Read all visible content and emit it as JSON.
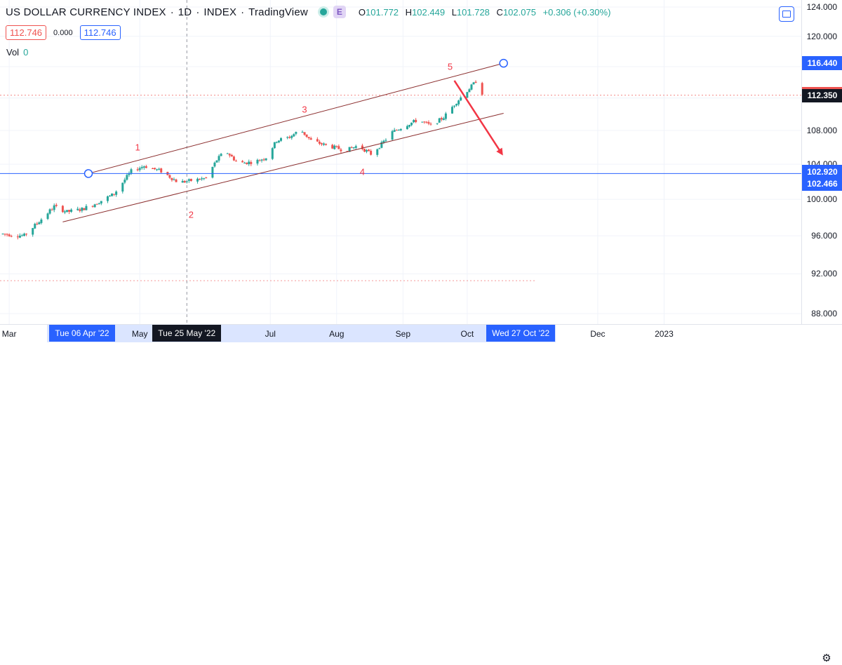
{
  "header": {
    "symbol": "US DOLLAR CURRENCY INDEX",
    "interval": "1D",
    "exchange": "INDEX",
    "source": "TradingView",
    "badge": "E",
    "ohlc": {
      "open_label": "O",
      "open": "101.772",
      "high_label": "H",
      "high": "102.449",
      "low_label": "L",
      "low": "101.728",
      "close_label": "C",
      "close": "102.075",
      "change": "+0.306 (+0.30%)"
    }
  },
  "quote": {
    "sell": "112.746",
    "spread": "0.000",
    "buy": "112.746"
  },
  "volume": {
    "label": "Vol",
    "value": "0"
  },
  "y_axis": {
    "ticks": [
      "124.000",
      "120.000",
      "116.000",
      "112.000",
      "108.000",
      "104.000",
      "100.000",
      "96.000",
      "92.000",
      "88.000"
    ],
    "tick_values": [
      124,
      120,
      116,
      112,
      108,
      104,
      100,
      96,
      92,
      88
    ],
    "price_labels": [
      {
        "text": "116.440",
        "value": 116.44,
        "color": "#2962ff"
      },
      {
        "text": "112.350",
        "value": 112.35,
        "color": "#131722"
      },
      {
        "text": "102.920",
        "value": 102.92,
        "color": "#2962ff"
      },
      {
        "text": "102.466",
        "value": 102.466,
        "color": "#2962ff"
      }
    ]
  },
  "x_axis": {
    "ticks": [
      {
        "text": "Mar",
        "day": 3
      },
      {
        "text": "May",
        "day": 64
      },
      {
        "text": "Jul",
        "day": 125
      },
      {
        "text": "Aug",
        "day": 156
      },
      {
        "text": "Sep",
        "day": 187
      },
      {
        "text": "Oct",
        "day": 217
      },
      {
        "text": "Dec",
        "day": 278
      },
      {
        "text": "2023",
        "day": 309
      }
    ],
    "labels": [
      {
        "text": "Tue 06 Apr '22",
        "day": 37,
        "color": "#2962ff"
      },
      {
        "text": "Tue 25 May '22",
        "day": 86,
        "color": "#131722"
      },
      {
        "text": "Wed 27 Oct '22",
        "day": 242,
        "color": "#2962ff"
      }
    ]
  },
  "elliott_labels": [
    {
      "text": "1",
      "day": 63,
      "price": 106.0
    },
    {
      "text": "2",
      "day": 88,
      "price": 98.3
    },
    {
      "text": "3",
      "day": 141,
      "price": 110.6
    },
    {
      "text": "4",
      "day": 168,
      "price": 103.1
    },
    {
      "text": "5",
      "day": 209,
      "price": 116.0
    }
  ],
  "colors": {
    "up": "#26a69a",
    "down": "#ef5350",
    "channel": "#8b2e2e",
    "hline": "#2962ff",
    "arrow": "#f23645",
    "label": "#f23645"
  },
  "chart_data": {
    "type": "candlestick",
    "title": "US DOLLAR CURRENCY INDEX · 1D · INDEX",
    "x_start": "Tue 01 Feb '22",
    "ylim": [
      86,
      125
    ],
    "candles": []
  },
  "annotations": {
    "channel_upper": {
      "start_day": 40,
      "start_price": 102.92,
      "end_day": 234,
      "end_price": 116.44
    },
    "channel_lower": {
      "start_day": 28,
      "start_price": 97.5,
      "end_day": 234,
      "end_price": 110.1
    },
    "arrow": {
      "start_day": 211,
      "start_price": 114.2,
      "end_day": 233,
      "end_price": 105.3
    },
    "hline": {
      "price": 102.92
    }
  },
  "icons": {
    "settings": "gear-icon",
    "fullscreen": "fullscreen-icon"
  }
}
